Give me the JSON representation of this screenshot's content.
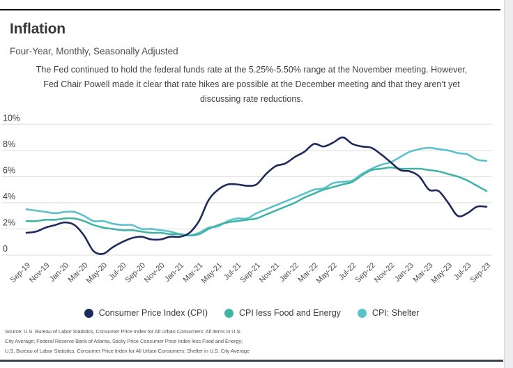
{
  "header": {
    "title": "Inflation",
    "subtitle": "Four-Year, Monthly, Seasonally Adjusted",
    "note_lines": [
      "The Fed continued to hold the federal funds rate at the 5.25%-5.50% range at the November meeting. However,",
      "Fed Chair Powell made it clear that rate hikes are possible at the December meeting and that they aren’t yet",
      "discussing rate reductions."
    ]
  },
  "chart_data": {
    "type": "line",
    "title": "Inflation",
    "subtitle": "Four-Year, Monthly, Seasonally Adjusted",
    "grid": "horizontal",
    "legend_position": "bottom",
    "ylim": [
      0,
      10
    ],
    "yticks": [
      {
        "value": 10,
        "label": "10%"
      },
      {
        "value": 8,
        "label": "8%"
      },
      {
        "value": 6,
        "label": "6%"
      },
      {
        "value": 4,
        "label": "4%"
      },
      {
        "value": 2,
        "label": "2%"
      },
      {
        "value": 0,
        "label": "0"
      }
    ],
    "x": [
      "Sep-19",
      "Oct-19",
      "Nov-19",
      "Dec-19",
      "Jan-20",
      "Feb-20",
      "Mar-20",
      "Apr-20",
      "May-20",
      "Jun-20",
      "Jul-20",
      "Aug-20",
      "Sep-20",
      "Oct-20",
      "Nov-20",
      "Dec-20",
      "Jan-21",
      "Feb-21",
      "Mar-21",
      "Apr-21",
      "May-21",
      "Jun-21",
      "Jul-21",
      "Aug-21",
      "Sep-21",
      "Oct-21",
      "Nov-21",
      "Dec-21",
      "Jan-22",
      "Feb-22",
      "Mar-22",
      "Apr-22",
      "May-22",
      "Jun-22",
      "Jul-22",
      "Aug-22",
      "Sep-22",
      "Oct-22",
      "Nov-22",
      "Dec-22",
      "Jan-23",
      "Feb-23",
      "Mar-23",
      "Apr-23",
      "May-23",
      "Jun-23",
      "Jul-23",
      "Aug-23",
      "Sep-23"
    ],
    "x_tick_labels": [
      "Sep-19",
      "Nov-19",
      "Jan-20",
      "Mar-20",
      "May-20",
      "Jul-20",
      "Sep-20",
      "Nov-20",
      "Jan-21",
      "Mar-21",
      "May-21",
      "Jul-21",
      "Sep-21",
      "Nov-21",
      "Jan-22",
      "Mar-22",
      "May-22",
      "Jul-22",
      "Sep-22",
      "Nov-22",
      "Jan-23",
      "Mar-23",
      "May-23",
      "Jul-23",
      "Sep-23"
    ],
    "series": [
      {
        "name": "Consumer Price Index (CPI)",
        "color": "#1f2a5c",
        "values": [
          1.7,
          1.8,
          2.1,
          2.3,
          2.5,
          2.3,
          1.5,
          0.3,
          0.1,
          0.6,
          1.0,
          1.3,
          1.4,
          1.2,
          1.2,
          1.4,
          1.4,
          1.7,
          2.6,
          4.2,
          5.0,
          5.4,
          5.4,
          5.3,
          5.4,
          6.2,
          6.8,
          7.0,
          7.5,
          7.9,
          8.5,
          8.3,
          8.6,
          9.0,
          8.5,
          8.3,
          8.2,
          7.7,
          7.1,
          6.5,
          6.4,
          6.0,
          5.0,
          4.9,
          4.0,
          3.0,
          3.2,
          3.7,
          3.7
        ]
      },
      {
        "name": "CPI less Food and Energy",
        "color": "#41b4a6",
        "values": [
          2.6,
          2.6,
          2.7,
          2.7,
          2.8,
          2.8,
          2.6,
          2.3,
          2.1,
          2.0,
          1.9,
          1.9,
          1.8,
          1.7,
          1.7,
          1.6,
          1.6,
          1.5,
          1.6,
          2.0,
          2.3,
          2.5,
          2.6,
          2.7,
          2.8,
          3.1,
          3.4,
          3.7,
          4.0,
          4.4,
          4.7,
          5.0,
          5.2,
          5.4,
          5.6,
          6.1,
          6.5,
          6.6,
          6.7,
          6.6,
          6.6,
          6.6,
          6.5,
          6.4,
          6.2,
          6.0,
          5.7,
          5.3,
          4.9
        ]
      },
      {
        "name": "CPI: Shelter",
        "color": "#5cc1ca",
        "values": [
          3.5,
          3.4,
          3.3,
          3.2,
          3.3,
          3.3,
          3.0,
          2.6,
          2.6,
          2.4,
          2.3,
          2.3,
          2.0,
          2.0,
          1.9,
          1.8,
          1.6,
          1.5,
          1.7,
          2.1,
          2.2,
          2.6,
          2.8,
          2.8,
          3.2,
          3.5,
          3.8,
          4.1,
          4.4,
          4.7,
          5.0,
          5.1,
          5.5,
          5.6,
          5.7,
          6.2,
          6.6,
          6.9,
          7.1,
          7.5,
          7.9,
          8.1,
          8.2,
          8.1,
          8.0,
          7.8,
          7.7,
          7.3,
          7.2
        ]
      }
    ]
  },
  "source_lines": [
    "Source:  U.S. Bureau of Labor Statistics, Consumer Price Index for All Urban Consumers: All Items in U.S.",
    "City Average; Federal Reserve Bank of Atlanta, Sticky Price Consumer Price Index less Food and Energy;",
    "U.S. Bureau of Labor Statistics, Consumer Price Index for All Urban Consumers: Shelter in U.S. City Average"
  ]
}
